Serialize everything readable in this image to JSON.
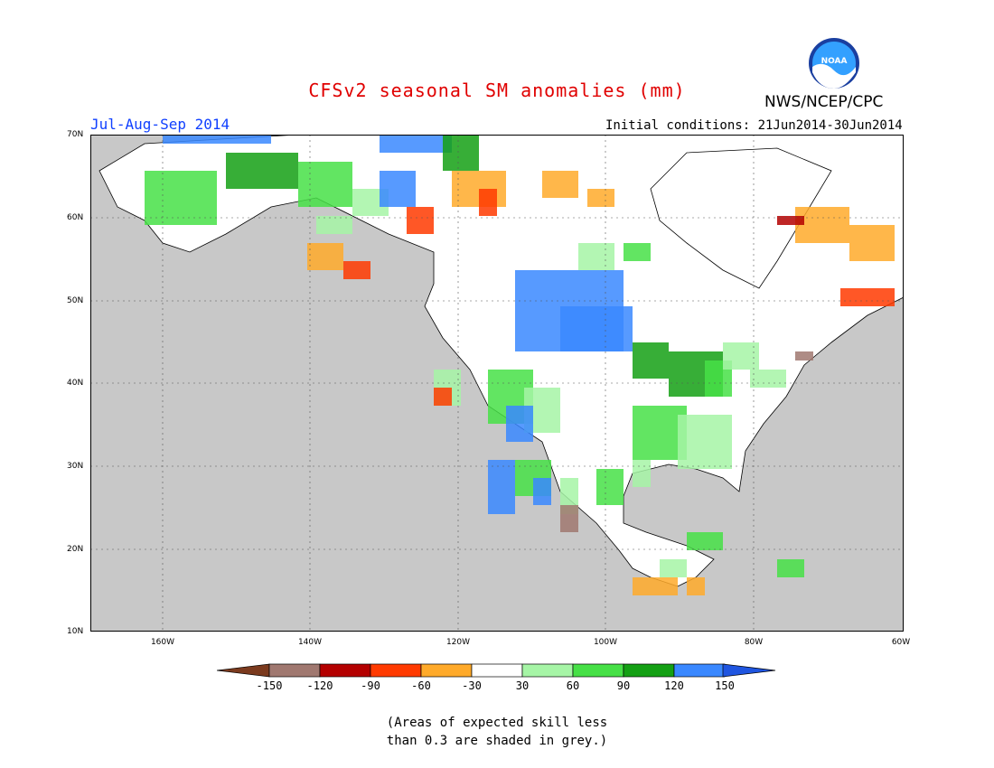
{
  "header": {
    "title": "CFSv2 seasonal SM anomalies (mm)",
    "org": "NWS/NCEP/CPC",
    "period": "Jul-Aug-Sep 2014",
    "initial_conditions": "Initial conditions: 21Jun2014-30Jun2014"
  },
  "logo": {
    "text": "NOAA",
    "icon": "noaa-logo"
  },
  "map": {
    "lon_range": [
      -172,
      -60
    ],
    "lat_range": [
      10,
      70
    ],
    "lat_labels": [
      "70N",
      "60N",
      "50N",
      "40N",
      "30N",
      "20N",
      "10N"
    ],
    "lon_labels": [
      "160W",
      "140W",
      "120W",
      "100W",
      "80W",
      "60W"
    ],
    "ocean_color": "#c8c8c8",
    "land_color": "#ffffff"
  },
  "legend": {
    "labels": [
      "-150",
      "-120",
      "-90",
      "-60",
      "-30",
      "30",
      "60",
      "90",
      "120",
      "150"
    ],
    "colors": [
      "#7b3a1e",
      "#a07870",
      "#b40000",
      "#ff3a00",
      "#ffaa2a",
      "#ffffff",
      "#a6f5a6",
      "#46e046",
      "#14a014",
      "#3a88ff",
      "#1f55e0"
    ]
  },
  "note": {
    "line1": "(Areas of expected skill less",
    "line2": "than 0.3 are shaded in grey.)"
  }
}
